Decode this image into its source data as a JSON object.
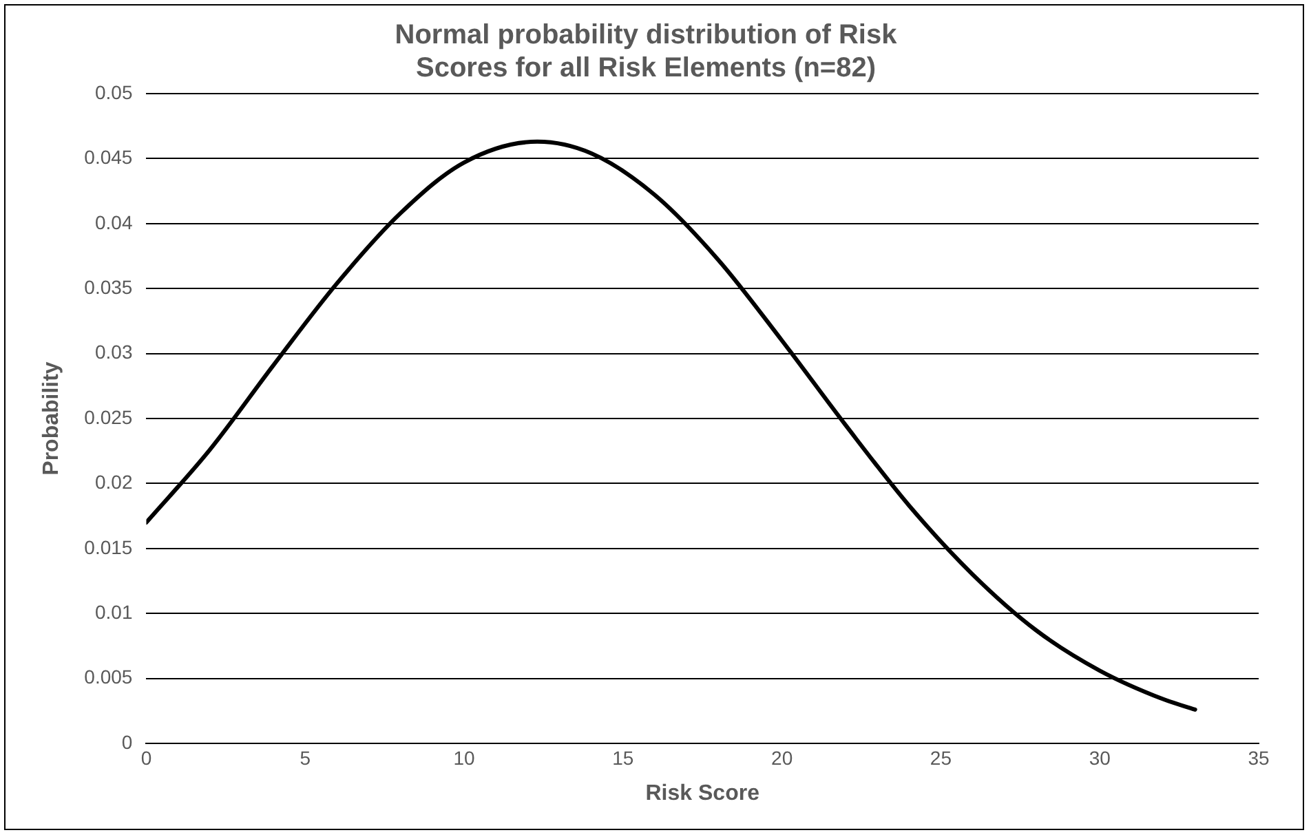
{
  "chart_data": {
    "type": "line",
    "title": "Normal probability distribution of Risk Scores for all Risk Elements (n=82)",
    "xlabel": "Risk Score",
    "ylabel": "Probability",
    "series": [
      {
        "color": "#000000",
        "x": [
          0,
          2,
          4,
          6,
          8,
          10,
          12.3,
          14,
          16,
          18,
          20,
          22,
          24,
          26,
          28,
          30,
          32,
          33
        ],
        "values": [
          0.017,
          0.0226,
          0.0291,
          0.0354,
          0.0408,
          0.0447,
          0.0463,
          0.0454,
          0.0422,
          0.0372,
          0.031,
          0.0245,
          0.0183,
          0.013,
          0.0087,
          0.0056,
          0.0034,
          0.0026
        ]
      }
    ],
    "xlim": [
      0,
      35
    ],
    "xticks": [
      0,
      5,
      10,
      15,
      20,
      25,
      30,
      35
    ],
    "ylim": [
      0,
      0.05
    ],
    "yticks": [
      0,
      0.005,
      0.01,
      0.015,
      0.02,
      0.025,
      0.03,
      0.035,
      0.04,
      0.045,
      0.05
    ],
    "grid": "y",
    "legend": false,
    "marker": "none",
    "line_style": "solid"
  }
}
